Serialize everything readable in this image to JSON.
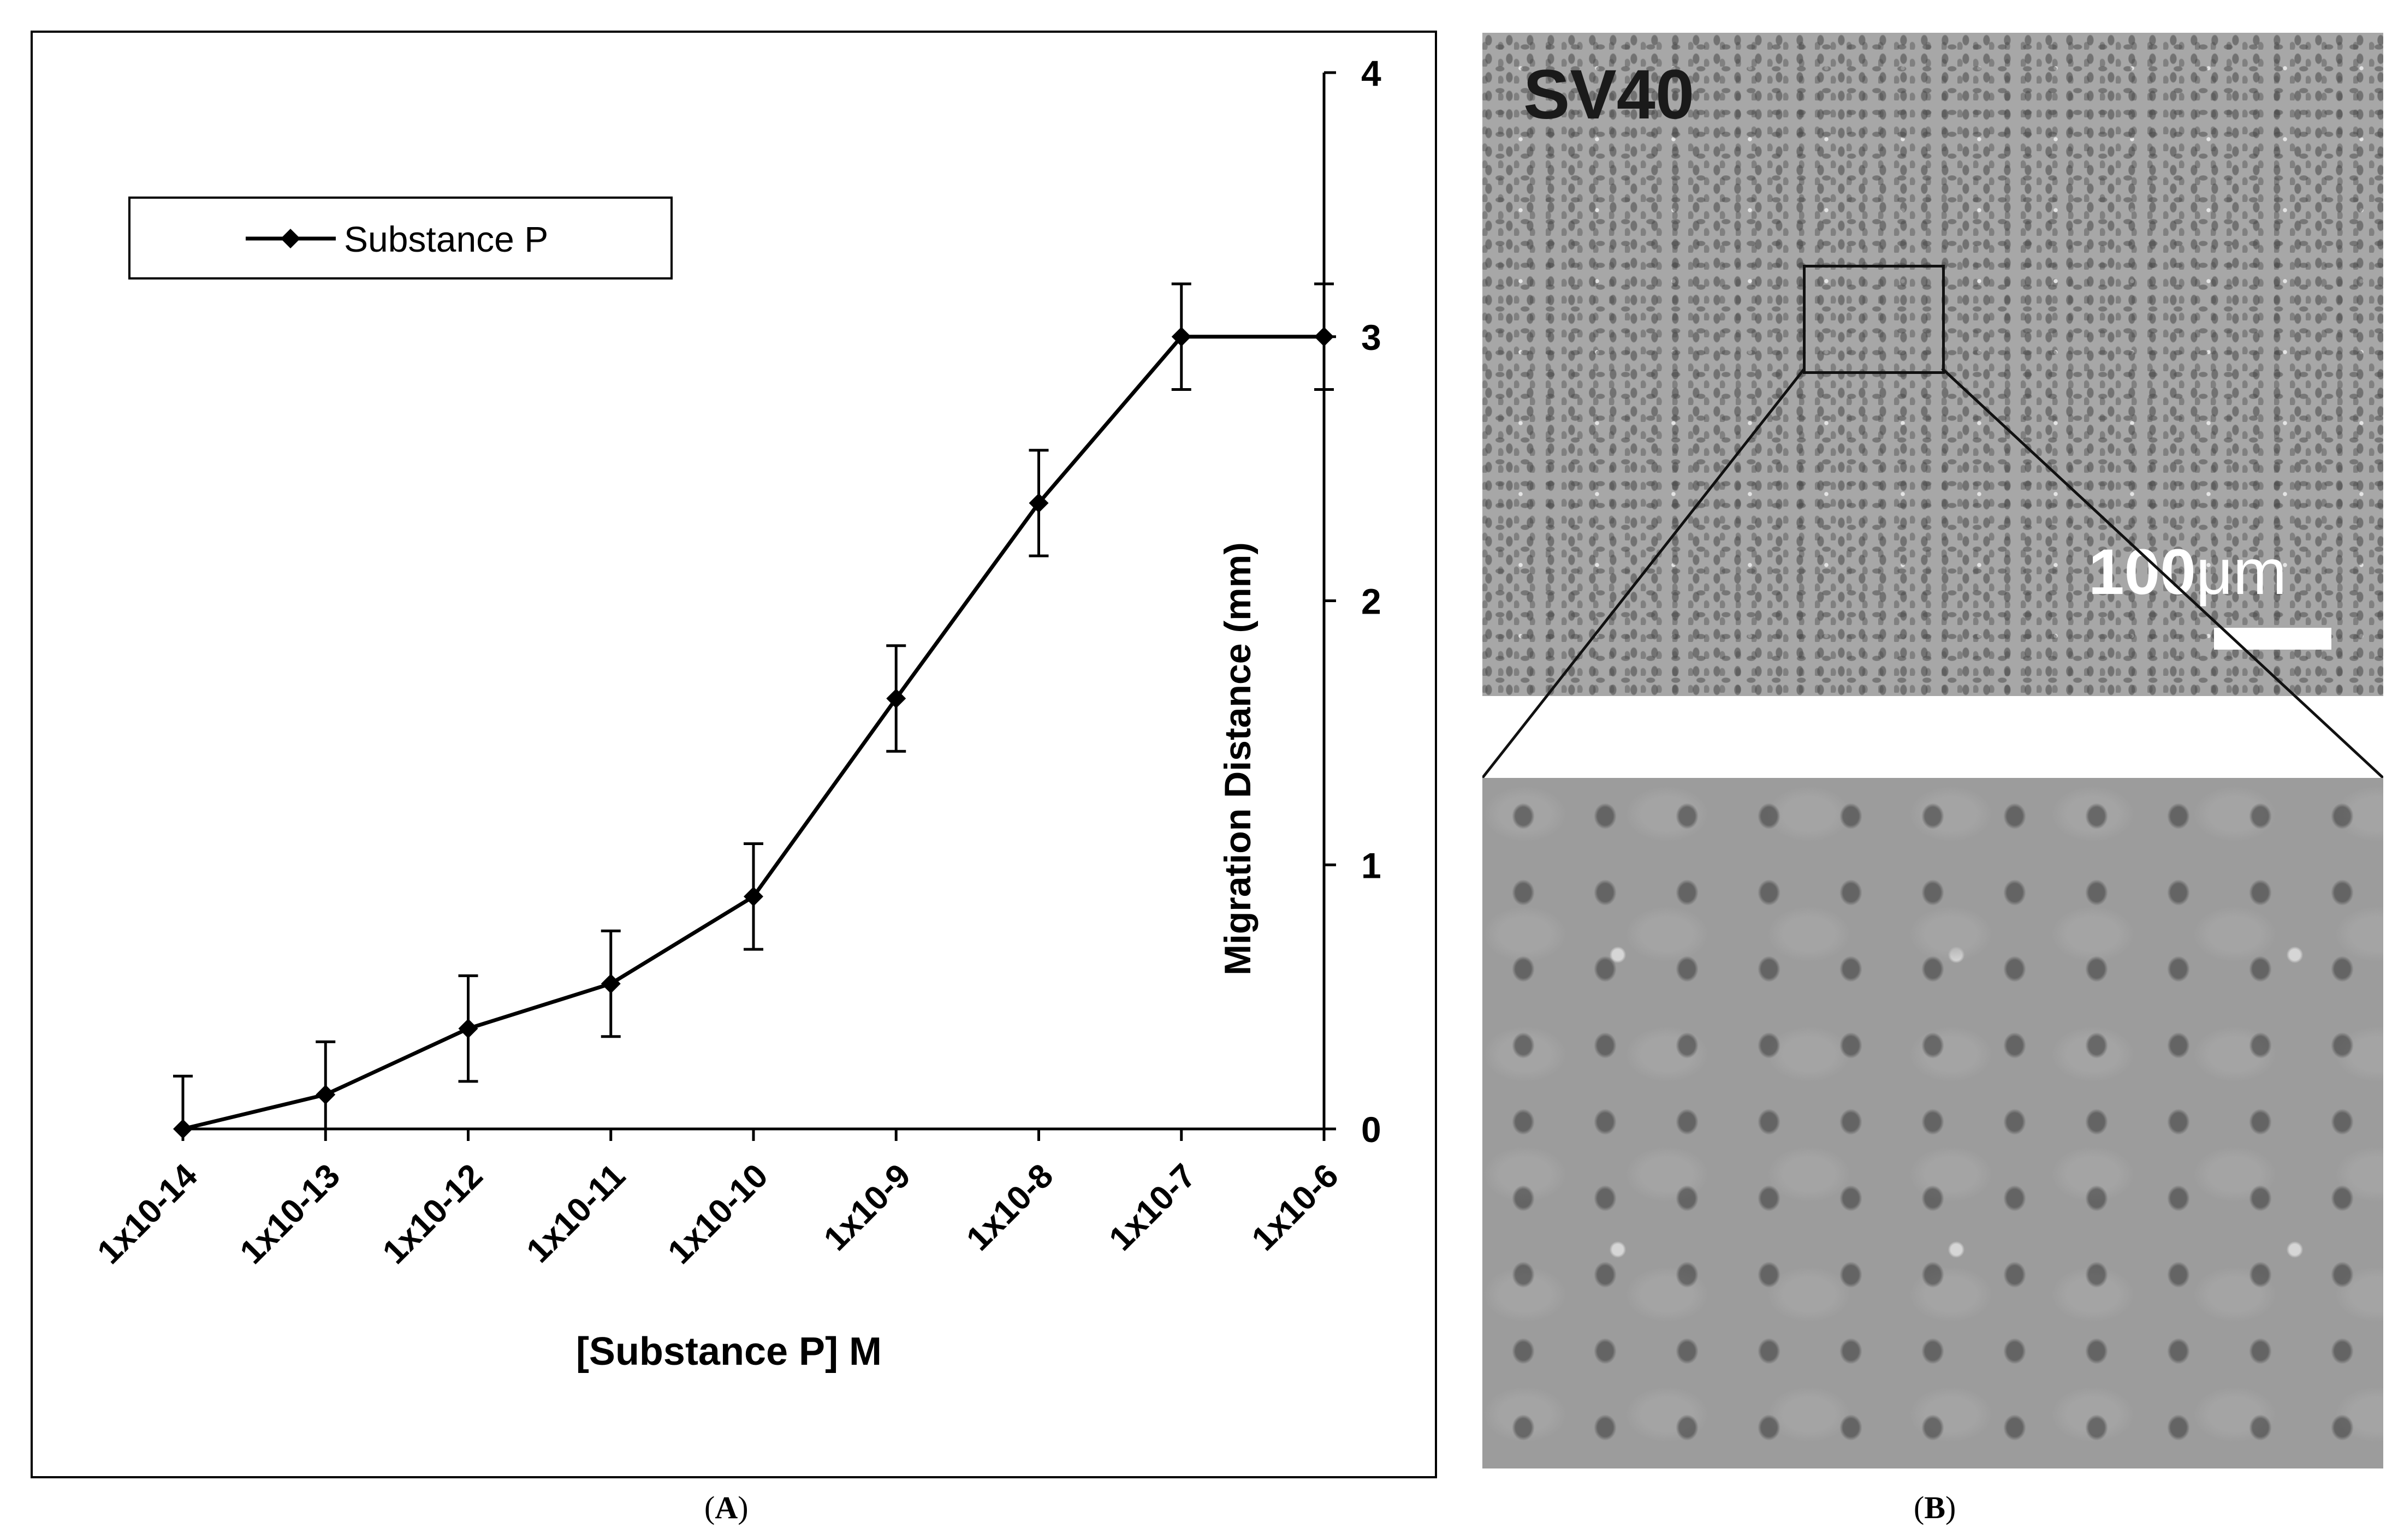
{
  "panels": {
    "a_label": "A",
    "b_label": "B"
  },
  "micrograph": {
    "cell_line_label": "SV40",
    "scale_value": "100",
    "scale_unit": "μm"
  },
  "chart_data": {
    "type": "line",
    "xlabel": "[Substance P] M",
    "ylabel": "Migration Distance (mm)",
    "categories": [
      "1x10-14",
      "1x10-13",
      "1x10-12",
      "1x10-11",
      "1x10-10",
      "1x10-9",
      "1x10-8",
      "1x10-7",
      "1x10-6"
    ],
    "series": [
      {
        "name": "Substance P",
        "values": [
          0,
          0.13,
          0.38,
          0.55,
          0.88,
          1.63,
          2.37,
          3.0,
          3.0
        ],
        "error": [
          0.2,
          0.2,
          0.2,
          0.2,
          0.2,
          0.2,
          0.2,
          0.2,
          0.2
        ]
      }
    ],
    "ylim": [
      0,
      4
    ],
    "yticks": [
      0,
      1,
      2,
      3,
      4
    ],
    "y_axis_side": "right",
    "grid": false,
    "legend_position": "top-left",
    "colors": {
      "line": "#000000",
      "marker": "#000000",
      "frame": "#000000"
    }
  }
}
